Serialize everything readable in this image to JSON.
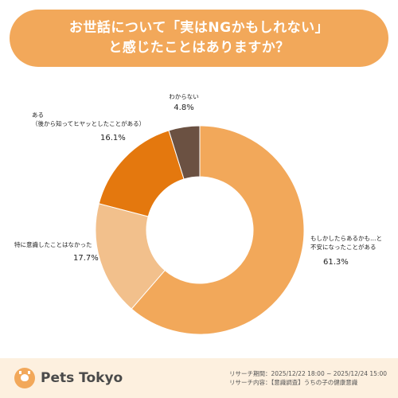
{
  "title": {
    "line1": "お世話について「実はNGかもしれない」",
    "line2": "と感じたことはありますか？"
  },
  "chart_data": {
    "type": "pie",
    "donut": true,
    "categories": [
      "もしかしたらあるかも…と\n不安になったことがある",
      "特に意識したことはなかった",
      "ある\n（後から知ってヒヤッとしたことがある）",
      "わからない"
    ],
    "values": [
      61.3,
      17.7,
      16.1,
      4.8
    ],
    "value_labels": [
      "61.3%",
      "17.7%",
      "16.1%",
      "4.8%"
    ],
    "colors": [
      "#f2a85a",
      "#f2c08c",
      "#e4780e",
      "#6b5142"
    ]
  },
  "footer": {
    "brand": "Pets Tokyo",
    "research_period": "リサーチ期間：2025/12/22 18:00 ~ 2025/12/24 15:00",
    "research_content": "リサーチ内容：【意識調査】うちの子の健康意識"
  }
}
